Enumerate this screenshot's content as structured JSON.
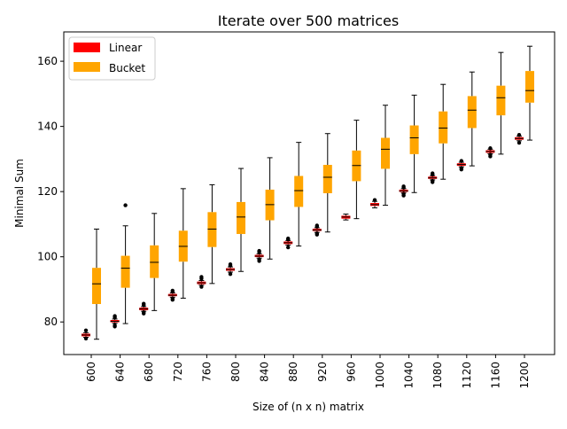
{
  "chart_data": {
    "type": "box",
    "title": "Iterate over 500 matrices",
    "xlabel": "Size of (n x n) matrix",
    "ylabel": "Minimal Sum",
    "categories": [
      "600",
      "640",
      "680",
      "720",
      "760",
      "800",
      "840",
      "880",
      "920",
      "960",
      "1000",
      "1040",
      "1080",
      "1120",
      "1160",
      "1200"
    ],
    "ylim": [
      70,
      169
    ],
    "yticks": [
      80,
      100,
      120,
      140,
      160
    ],
    "grid": false,
    "legend": {
      "position": "top-left",
      "entries": [
        "Linear",
        "Bucket"
      ]
    },
    "colors": {
      "Linear": "#ff0000",
      "Bucket": "#ffa500"
    },
    "series": [
      {
        "name": "Linear",
        "boxes": [
          {
            "whislo": 75.3,
            "q1": 75.6,
            "med": 76.0,
            "q3": 76.4,
            "whishi": 76.7,
            "fliers": [
              74.9,
              77.4
            ]
          },
          {
            "whislo": 79.6,
            "q1": 79.9,
            "med": 80.2,
            "q3": 80.6,
            "whishi": 80.9,
            "fliers": [
              78.6,
              79.0,
              81.4,
              81.8
            ]
          },
          {
            "whislo": 83.3,
            "q1": 83.6,
            "med": 84.0,
            "q3": 84.4,
            "whishi": 84.7,
            "fliers": [
              82.6,
              83.0,
              85.2,
              85.6
            ]
          },
          {
            "whislo": 87.6,
            "q1": 87.9,
            "med": 88.2,
            "q3": 88.6,
            "whishi": 88.9,
            "fliers": [
              86.8,
              87.2,
              89.3,
              89.6
            ]
          },
          {
            "whislo": 91.3,
            "q1": 91.6,
            "med": 92.0,
            "q3": 92.4,
            "whishi": 92.7,
            "fliers": [
              90.8,
              93.3,
              93.8
            ]
          },
          {
            "whislo": 95.3,
            "q1": 95.7,
            "med": 96.1,
            "q3": 96.5,
            "whishi": 96.9,
            "fliers": [
              94.7,
              97.3,
              97.7
            ]
          },
          {
            "whislo": 99.6,
            "q1": 99.9,
            "med": 100.2,
            "q3": 100.6,
            "whishi": 100.9,
            "fliers": [
              98.7,
              99.2,
              101.4,
              101.8
            ]
          },
          {
            "whislo": 103.6,
            "q1": 103.9,
            "med": 104.3,
            "q3": 104.7,
            "whishi": 105.0,
            "fliers": [
              102.9,
              105.3,
              105.6
            ]
          },
          {
            "whislo": 107.5,
            "q1": 107.9,
            "med": 108.2,
            "q3": 108.6,
            "whishi": 108.9,
            "fliers": [
              106.8,
              107.2,
              109.2,
              109.6
            ]
          },
          {
            "whislo": 111.3,
            "q1": 111.7,
            "med": 112.2,
            "q3": 112.6,
            "whishi": 113.1,
            "fliers": []
          },
          {
            "whislo": 115.0,
            "q1": 115.6,
            "med": 116.0,
            "q3": 116.5,
            "whishi": 117.0,
            "fliers": [
              117.4
            ]
          },
          {
            "whislo": 119.6,
            "q1": 119.9,
            "med": 120.2,
            "q3": 120.6,
            "whishi": 120.9,
            "fliers": [
              118.8,
              119.3,
              121.2,
              121.6
            ]
          },
          {
            "whislo": 123.6,
            "q1": 123.9,
            "med": 124.2,
            "q3": 124.6,
            "whishi": 124.9,
            "fliers": [
              122.9,
              123.3,
              125.2,
              125.6
            ]
          },
          {
            "whislo": 127.6,
            "q1": 127.9,
            "med": 128.3,
            "q3": 128.7,
            "whishi": 129.0,
            "fliers": [
              126.8,
              127.2,
              129.4
            ]
          },
          {
            "whislo": 131.6,
            "q1": 131.9,
            "med": 132.3,
            "q3": 132.7,
            "whishi": 133.0,
            "fliers": [
              130.8,
              131.3,
              133.3
            ]
          },
          {
            "whislo": 135.6,
            "q1": 135.9,
            "med": 136.3,
            "q3": 136.7,
            "whishi": 137.0,
            "fliers": [
              135.0,
              137.4
            ]
          }
        ]
      },
      {
        "name": "Bucket",
        "boxes": [
          {
            "whislo": 74.7,
            "q1": 85.5,
            "med": 91.7,
            "q3": 96.6,
            "whishi": 108.5,
            "fliers": []
          },
          {
            "whislo": 79.5,
            "q1": 90.5,
            "med": 96.5,
            "q3": 100.3,
            "whishi": 109.5,
            "fliers": [
              115.8
            ]
          },
          {
            "whislo": 83.5,
            "q1": 93.5,
            "med": 98.3,
            "q3": 103.5,
            "whishi": 113.3,
            "fliers": []
          },
          {
            "whislo": 87.3,
            "q1": 98.5,
            "med": 103.2,
            "q3": 108.0,
            "whishi": 120.9,
            "fliers": []
          },
          {
            "whislo": 91.8,
            "q1": 103.0,
            "med": 108.5,
            "q3": 113.7,
            "whishi": 122.1,
            "fliers": []
          },
          {
            "whislo": 95.5,
            "q1": 107.0,
            "med": 112.2,
            "q3": 116.8,
            "whishi": 127.1,
            "fliers": []
          },
          {
            "whislo": 99.3,
            "q1": 111.2,
            "med": 116.0,
            "q3": 120.6,
            "whishi": 130.4,
            "fliers": []
          },
          {
            "whislo": 103.3,
            "q1": 115.3,
            "med": 120.3,
            "q3": 124.8,
            "whishi": 135.1,
            "fliers": []
          },
          {
            "whislo": 107.6,
            "q1": 119.5,
            "med": 124.4,
            "q3": 128.2,
            "whishi": 137.8,
            "fliers": []
          },
          {
            "whislo": 111.7,
            "q1": 123.2,
            "med": 128.0,
            "q3": 132.6,
            "whishi": 141.9,
            "fliers": []
          },
          {
            "whislo": 115.8,
            "q1": 127.0,
            "med": 133.0,
            "q3": 136.5,
            "whishi": 146.5,
            "fliers": []
          },
          {
            "whislo": 119.7,
            "q1": 131.5,
            "med": 136.5,
            "q3": 140.3,
            "whishi": 149.6,
            "fliers": []
          },
          {
            "whislo": 123.8,
            "q1": 134.8,
            "med": 139.5,
            "q3": 144.6,
            "whishi": 152.9,
            "fliers": []
          },
          {
            "whislo": 127.9,
            "q1": 139.5,
            "med": 145.0,
            "q3": 149.3,
            "whishi": 156.7,
            "fliers": []
          },
          {
            "whislo": 131.5,
            "q1": 143.4,
            "med": 148.8,
            "q3": 152.5,
            "whishi": 162.7,
            "fliers": []
          },
          {
            "whislo": 135.8,
            "q1": 147.3,
            "med": 151.0,
            "q3": 157.0,
            "whishi": 164.6,
            "fliers": []
          }
        ]
      }
    ]
  }
}
